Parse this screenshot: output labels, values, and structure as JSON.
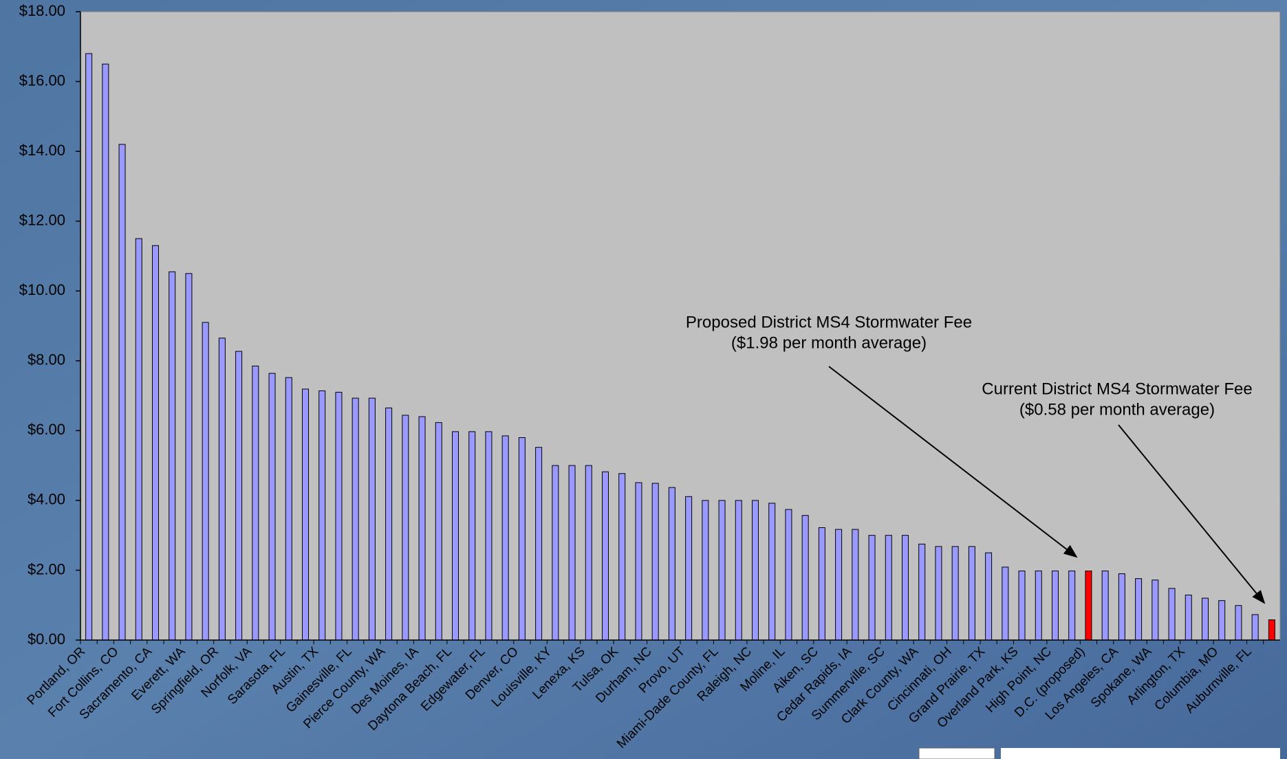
{
  "chart_data": {
    "type": "bar",
    "categories": [
      "Portland, OR",
      null,
      "Fort Collins, CO",
      null,
      "Sacramento, CA",
      null,
      "Everett, WA",
      null,
      "Springfield, OR",
      null,
      "Norfolk, VA",
      null,
      "Sarasota, FL",
      null,
      "Austin, TX",
      null,
      "Gainesville, FL",
      null,
      "Pierce County, WA",
      null,
      "Des Moines, IA",
      null,
      "Daytona Beach, FL",
      null,
      "Edgewater, FL",
      null,
      "Denver, CO",
      null,
      "Louisville, KY",
      null,
      "Lenexa, KS",
      null,
      "Tulsa, OK",
      null,
      "Durham, NC",
      null,
      "Provo, UT",
      null,
      "Miami-Dade County, FL",
      null,
      "Raleigh, NC",
      null,
      "Moline, IL",
      null,
      "Aiken, SC",
      null,
      "Cedar Rapids, IA",
      null,
      "Summerville, SC",
      null,
      "Clark County, WA",
      null,
      "Cincinnati, OH",
      null,
      "Grand Prairie, TX",
      null,
      "Overland Park, KS",
      null,
      "High Point, NC",
      null,
      "D.C. (proposed)",
      null,
      "Los Angeles, CA",
      null,
      "Spokane, WA",
      null,
      "Arlington, TX",
      null,
      "Columbia, MO",
      null,
      "Auburnville, FL",
      null
    ],
    "values": [
      16.8,
      16.5,
      14.2,
      11.5,
      11.3,
      10.55,
      10.5,
      9.1,
      8.65,
      8.27,
      7.85,
      7.64,
      7.52,
      7.19,
      7.14,
      7.1,
      6.93,
      6.93,
      6.65,
      6.44,
      6.4,
      6.23,
      5.97,
      5.97,
      5.97,
      5.85,
      5.8,
      5.52,
      5.0,
      5.0,
      5.0,
      4.82,
      4.77,
      4.51,
      4.49,
      4.37,
      4.11,
      4.0,
      4.0,
      4.0,
      4.0,
      3.92,
      3.74,
      3.57,
      3.22,
      3.17,
      3.17,
      3.0,
      3.0,
      3.0,
      2.75,
      2.68,
      2.68,
      2.68,
      2.5,
      2.09,
      1.98,
      1.98,
      1.98,
      1.98,
      1.98,
      1.98,
      1.9,
      1.76,
      1.72,
      1.48,
      1.29,
      1.2,
      1.13,
      0.99,
      0.73,
      0.58
    ],
    "bar_colors": [
      "#9999ff",
      "#9999ff",
      "#9999ff",
      "#9999ff",
      "#9999ff",
      "#9999ff",
      "#9999ff",
      "#9999ff",
      "#9999ff",
      "#9999ff",
      "#9999ff",
      "#9999ff",
      "#9999ff",
      "#9999ff",
      "#9999ff",
      "#9999ff",
      "#9999ff",
      "#9999ff",
      "#9999ff",
      "#9999ff",
      "#9999ff",
      "#9999ff",
      "#9999ff",
      "#9999ff",
      "#9999ff",
      "#9999ff",
      "#9999ff",
      "#9999ff",
      "#9999ff",
      "#9999ff",
      "#9999ff",
      "#9999ff",
      "#9999ff",
      "#9999ff",
      "#9999ff",
      "#9999ff",
      "#9999ff",
      "#9999ff",
      "#9999ff",
      "#9999ff",
      "#9999ff",
      "#9999ff",
      "#9999ff",
      "#9999ff",
      "#9999ff",
      "#9999ff",
      "#9999ff",
      "#9999ff",
      "#9999ff",
      "#9999ff",
      "#9999ff",
      "#9999ff",
      "#9999ff",
      "#9999ff",
      "#9999ff",
      "#9999ff",
      "#9999ff",
      "#9999ff",
      "#9999ff",
      "#9999ff",
      "#ff0000",
      "#9999ff",
      "#9999ff",
      "#9999ff",
      "#9999ff",
      "#9999ff",
      "#9999ff",
      "#9999ff",
      "#9999ff",
      "#9999ff",
      "#9999ff",
      "#ff0000"
    ],
    "ylim": [
      0,
      18
    ],
    "yticks": [
      {
        "value": 0,
        "label": "$0.00"
      },
      {
        "value": 2,
        "label": "$2.00"
      },
      {
        "value": 4,
        "label": "$4.00"
      },
      {
        "value": 6,
        "label": "$6.00"
      },
      {
        "value": 8,
        "label": "$8.00"
      },
      {
        "value": 10,
        "label": "$10.00"
      },
      {
        "value": 12,
        "label": "$12.00"
      },
      {
        "value": 14,
        "label": "$14.00"
      },
      {
        "value": 16,
        "label": "$16.00"
      },
      {
        "value": 18,
        "label": "$18.00"
      }
    ],
    "annotations": [
      {
        "lines": [
          "Proposed District MS4 Stormwater Fee",
          "($1.98 per month average)"
        ]
      },
      {
        "lines": [
          "Current District MS4 Stormwater Fee",
          "($0.58 per month average)"
        ]
      }
    ]
  }
}
